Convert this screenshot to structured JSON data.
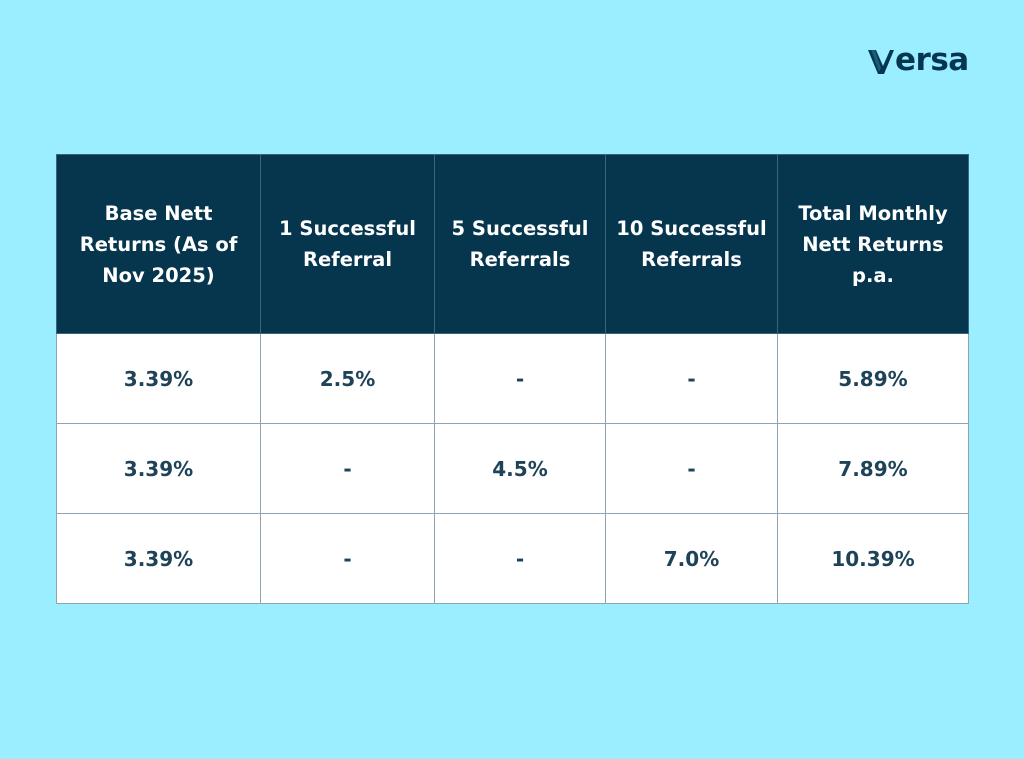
{
  "brand": {
    "name": "versa",
    "color": "#06364f"
  },
  "table": {
    "headers": [
      "Base Nett Returns (As of Nov 2025)",
      "1 Successful Referral",
      "5 Successful Referrals",
      "10 Successful Referrals",
      "Total Monthly Nett Returns p.a."
    ],
    "rows": [
      [
        "3.39%",
        "2.5%",
        "-",
        "-",
        "5.89%"
      ],
      [
        "3.39%",
        "-",
        "4.5%",
        "-",
        "7.89%"
      ],
      [
        "3.39%",
        "-",
        "-",
        "7.0%",
        "10.39%"
      ]
    ]
  },
  "colors": {
    "background": "#9aeeff",
    "header_fill": "#05364e",
    "cell_fill": "#ffffff",
    "cell_text": "#1e4359"
  }
}
